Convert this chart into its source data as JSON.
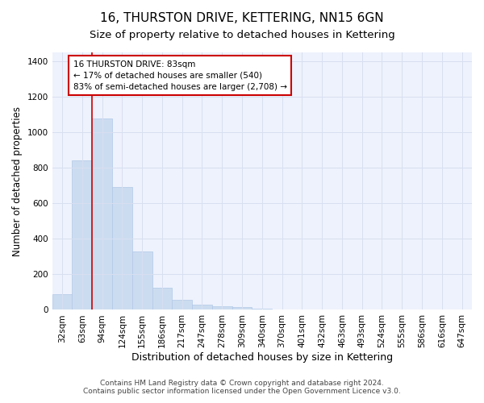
{
  "title1": "16, THURSTON DRIVE, KETTERING, NN15 6GN",
  "title2": "Size of property relative to detached houses in Kettering",
  "xlabel": "Distribution of detached houses by size in Kettering",
  "ylabel": "Number of detached properties",
  "bar_labels": [
    "32sqm",
    "63sqm",
    "94sqm",
    "124sqm",
    "155sqm",
    "186sqm",
    "217sqm",
    "247sqm",
    "278sqm",
    "309sqm",
    "340sqm",
    "370sqm",
    "401sqm",
    "432sqm",
    "463sqm",
    "493sqm",
    "524sqm",
    "555sqm",
    "586sqm",
    "616sqm",
    "647sqm"
  ],
  "bar_values": [
    90,
    840,
    1080,
    690,
    330,
    125,
    55,
    30,
    20,
    15,
    8,
    0,
    0,
    0,
    0,
    0,
    0,
    0,
    0,
    0,
    0
  ],
  "bar_color": "#ccdcf0",
  "bar_edgecolor": "#b0c8e8",
  "vline_color": "#cc0000",
  "annotation_text": "16 THURSTON DRIVE: 83sqm\n← 17% of detached houses are smaller (540)\n83% of semi-detached houses are larger (2,708) →",
  "annotation_box_color": "#ffffff",
  "annotation_box_edgecolor": "#cc0000",
  "ylim": [
    0,
    1450
  ],
  "yticks": [
    0,
    200,
    400,
    600,
    800,
    1000,
    1200,
    1400
  ],
  "grid_color": "#d8dff0",
  "bg_color": "#eef2fc",
  "footnote": "Contains HM Land Registry data © Crown copyright and database right 2024.\nContains public sector information licensed under the Open Government Licence v3.0.",
  "title1_fontsize": 11,
  "title2_fontsize": 9.5,
  "xlabel_fontsize": 9,
  "ylabel_fontsize": 8.5,
  "tick_fontsize": 7.5,
  "footnote_fontsize": 6.5
}
